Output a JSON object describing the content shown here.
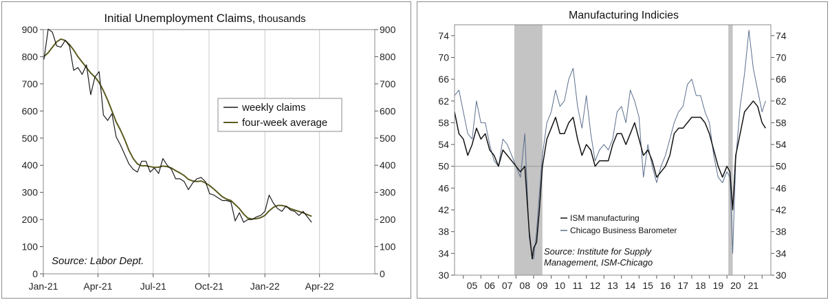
{
  "chart_data": [
    {
      "type": "line",
      "title": "Initial Unemployment Claims,",
      "title_units": "thousands",
      "x_ticks": [
        "Jan-21",
        "Apr-21",
        "Jul-21",
        "Oct-21",
        "Jan-22",
        "Apr-22"
      ],
      "x_range": [
        "2021-01-01",
        "2022-07-01"
      ],
      "ylim": [
        0,
        900
      ],
      "y_ticks": [
        0,
        100,
        200,
        300,
        400,
        500,
        600,
        700,
        800,
        900
      ],
      "y_ticks_right": [
        0,
        100,
        200,
        300,
        400,
        500,
        600,
        700,
        800,
        900
      ],
      "grid": "vertical",
      "legend_position": "center-right",
      "source": "Source: Labor Dept.",
      "series": [
        {
          "name": "weekly claims",
          "color": "#1a1a1a",
          "x": [
            "2021-01-02",
            "2021-01-09",
            "2021-01-16",
            "2021-01-23",
            "2021-01-30",
            "2021-02-06",
            "2021-02-13",
            "2021-02-20",
            "2021-02-27",
            "2021-03-06",
            "2021-03-13",
            "2021-03-20",
            "2021-03-27",
            "2021-04-03",
            "2021-04-10",
            "2021-04-17",
            "2021-04-24",
            "2021-05-01",
            "2021-05-08",
            "2021-05-15",
            "2021-05-22",
            "2021-05-29",
            "2021-06-05",
            "2021-06-12",
            "2021-06-19",
            "2021-06-26",
            "2021-07-03",
            "2021-07-10",
            "2021-07-17",
            "2021-07-24",
            "2021-07-31",
            "2021-08-07",
            "2021-08-14",
            "2021-08-21",
            "2021-08-28",
            "2021-09-04",
            "2021-09-11",
            "2021-09-18",
            "2021-09-25",
            "2021-10-02",
            "2021-10-09",
            "2021-10-16",
            "2021-10-23",
            "2021-10-30",
            "2021-11-06",
            "2021-11-13",
            "2021-11-20",
            "2021-11-27",
            "2021-12-04",
            "2021-12-11",
            "2021-12-18",
            "2021-12-25",
            "2022-01-01",
            "2022-01-08",
            "2022-01-15",
            "2022-01-22",
            "2022-01-29",
            "2022-02-05",
            "2022-02-12",
            "2022-02-19",
            "2022-02-26",
            "2022-03-05",
            "2022-03-12",
            "2022-03-19"
          ],
          "values": [
            790,
            902,
            890,
            840,
            835,
            860,
            840,
            750,
            760,
            735,
            770,
            660,
            725,
            745,
            585,
            565,
            590,
            505,
            475,
            440,
            405,
            385,
            375,
            415,
            415,
            375,
            390,
            370,
            425,
            400,
            385,
            350,
            350,
            340,
            310,
            335,
            350,
            355,
            340,
            295,
            290,
            280,
            270,
            270,
            265,
            195,
            225,
            190,
            200,
            200,
            210,
            215,
            230,
            290,
            260,
            240,
            230,
            250,
            235,
            230,
            215,
            230,
            210,
            190
          ]
        },
        {
          "name": "four-week average",
          "color": "#5a5a1e",
          "x": [
            "2021-01-02",
            "2021-01-09",
            "2021-01-16",
            "2021-01-23",
            "2021-01-30",
            "2021-02-06",
            "2021-02-13",
            "2021-02-20",
            "2021-02-27",
            "2021-03-06",
            "2021-03-13",
            "2021-03-20",
            "2021-03-27",
            "2021-04-03",
            "2021-04-10",
            "2021-04-17",
            "2021-04-24",
            "2021-05-01",
            "2021-05-08",
            "2021-05-15",
            "2021-05-22",
            "2021-05-29",
            "2021-06-05",
            "2021-06-12",
            "2021-06-19",
            "2021-06-26",
            "2021-07-03",
            "2021-07-10",
            "2021-07-17",
            "2021-07-24",
            "2021-07-31",
            "2021-08-07",
            "2021-08-14",
            "2021-08-21",
            "2021-08-28",
            "2021-09-04",
            "2021-09-11",
            "2021-09-18",
            "2021-09-25",
            "2021-10-02",
            "2021-10-09",
            "2021-10-16",
            "2021-10-23",
            "2021-10-30",
            "2021-11-06",
            "2021-11-13",
            "2021-11-20",
            "2021-11-27",
            "2021-12-04",
            "2021-12-11",
            "2021-12-18",
            "2021-12-25",
            "2022-01-01",
            "2022-01-08",
            "2022-01-15",
            "2022-01-22",
            "2022-01-29",
            "2022-02-05",
            "2022-02-12",
            "2022-02-19",
            "2022-02-26",
            "2022-03-05",
            "2022-03-12",
            "2022-03-19"
          ],
          "values": [
            800,
            815,
            835,
            855,
            865,
            860,
            845,
            825,
            800,
            780,
            760,
            740,
            725,
            705,
            675,
            640,
            600,
            560,
            530,
            495,
            455,
            425,
            405,
            398,
            398,
            395,
            392,
            393,
            397,
            395,
            390,
            380,
            372,
            362,
            348,
            342,
            340,
            342,
            335,
            325,
            312,
            298,
            284,
            275,
            270,
            255,
            240,
            220,
            205,
            202,
            203,
            207,
            215,
            232,
            245,
            252,
            252,
            248,
            240,
            235,
            230,
            225,
            218,
            212
          ]
        }
      ]
    },
    {
      "type": "line",
      "title": "Manufacturing Indicies",
      "x_ticks": [
        "05",
        "06",
        "07",
        "08",
        "09",
        "10",
        "11",
        "12",
        "13",
        "14",
        "15",
        "16",
        "17",
        "18",
        "19",
        "20",
        "21"
      ],
      "x_range": [
        2004.5,
        2022.5
      ],
      "ylim": [
        30,
        76
      ],
      "y_ticks": [
        30,
        34,
        38,
        42,
        46,
        50,
        54,
        58,
        62,
        66,
        70,
        74
      ],
      "y_ticks_right": [
        30,
        34,
        38,
        42,
        46,
        50,
        54,
        58,
        62,
        66,
        70,
        74
      ],
      "reference_line": 50,
      "recessions": [
        [
          2007.9,
          2009.5
        ],
        [
          2020.08,
          2020.33
        ]
      ],
      "legend_position": "bottom-center",
      "source": "Source: Institute for Supply",
      "source_line2": "Management, ISM-Chicago",
      "series": [
        {
          "name": "ISM manufacturing",
          "color": "#111111",
          "x": [
            2004.5,
            2004.75,
            2005.0,
            2005.25,
            2005.5,
            2005.75,
            2006.0,
            2006.25,
            2006.5,
            2006.75,
            2007.0,
            2007.25,
            2007.5,
            2007.75,
            2008.0,
            2008.25,
            2008.5,
            2008.75,
            2008.92,
            2009.0,
            2009.17,
            2009.33,
            2009.5,
            2009.75,
            2010.0,
            2010.25,
            2010.5,
            2010.75,
            2011.0,
            2011.25,
            2011.5,
            2011.75,
            2012.0,
            2012.25,
            2012.5,
            2012.75,
            2013.0,
            2013.25,
            2013.5,
            2013.75,
            2014.0,
            2014.25,
            2014.5,
            2014.75,
            2015.0,
            2015.25,
            2015.5,
            2015.75,
            2016.0,
            2016.25,
            2016.5,
            2016.75,
            2017.0,
            2017.25,
            2017.5,
            2017.75,
            2018.0,
            2018.25,
            2018.5,
            2018.75,
            2019.0,
            2019.25,
            2019.5,
            2019.75,
            2020.0,
            2020.17,
            2020.33,
            2020.5,
            2020.75,
            2021.0,
            2021.25,
            2021.5,
            2021.75,
            2022.0,
            2022.2
          ],
          "values": [
            60,
            56,
            55,
            52,
            54,
            57,
            55,
            56,
            53,
            52,
            50,
            53,
            52,
            51,
            50,
            49,
            50,
            38,
            33,
            35,
            36,
            42,
            50,
            55,
            57,
            59,
            56,
            56,
            58,
            59,
            55,
            52,
            54,
            53,
            50,
            51,
            51,
            51,
            54,
            56,
            56,
            54,
            56,
            58,
            55,
            52,
            53,
            51,
            48,
            49,
            50,
            52,
            56,
            57,
            57,
            58,
            59,
            59,
            59,
            58,
            56,
            53,
            50,
            48,
            50,
            49,
            42,
            52,
            56,
            60,
            61,
            62,
            61,
            58,
            57
          ]
        },
        {
          "name": "Chicago Business Barometer",
          "color": "#5a6e8c",
          "x": [
            2004.5,
            2004.75,
            2005.0,
            2005.25,
            2005.5,
            2005.75,
            2006.0,
            2006.25,
            2006.5,
            2006.75,
            2007.0,
            2007.25,
            2007.5,
            2007.75,
            2008.0,
            2008.25,
            2008.5,
            2008.75,
            2008.92,
            2009.0,
            2009.17,
            2009.33,
            2009.5,
            2009.75,
            2010.0,
            2010.25,
            2010.5,
            2010.75,
            2011.0,
            2011.25,
            2011.5,
            2011.75,
            2012.0,
            2012.25,
            2012.5,
            2012.75,
            2013.0,
            2013.25,
            2013.5,
            2013.75,
            2014.0,
            2014.25,
            2014.5,
            2014.75,
            2015.0,
            2015.25,
            2015.5,
            2015.75,
            2016.0,
            2016.25,
            2016.5,
            2016.75,
            2017.0,
            2017.25,
            2017.5,
            2017.75,
            2018.0,
            2018.25,
            2018.5,
            2018.75,
            2019.0,
            2019.25,
            2019.5,
            2019.75,
            2020.0,
            2020.17,
            2020.33,
            2020.5,
            2020.75,
            2021.0,
            2021.25,
            2021.5,
            2021.75,
            2022.0,
            2022.2
          ],
          "values": [
            63,
            64,
            60,
            56,
            55,
            62,
            58,
            58,
            54,
            51,
            50,
            55,
            54,
            52,
            50,
            48,
            56,
            37,
            33,
            33,
            38,
            45,
            52,
            58,
            60,
            64,
            61,
            62,
            66,
            68,
            61,
            57,
            63,
            56,
            51,
            53,
            54,
            53,
            55,
            60,
            61,
            58,
            64,
            62,
            59,
            48,
            54,
            50,
            47,
            50,
            52,
            55,
            58,
            60,
            61,
            65,
            66,
            63,
            63,
            60,
            58,
            52,
            48,
            47,
            49,
            48,
            34,
            51,
            61,
            67,
            75,
            68,
            64,
            60,
            62
          ]
        }
      ]
    }
  ]
}
